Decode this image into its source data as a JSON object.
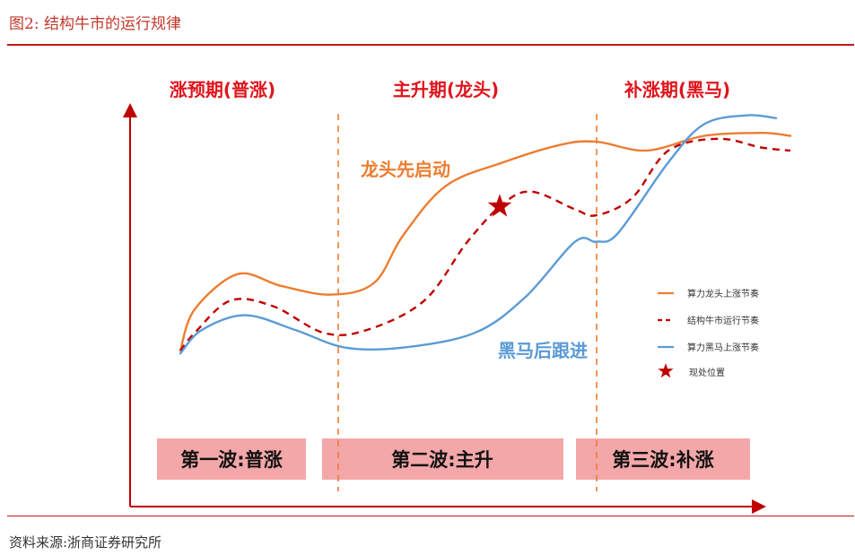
{
  "header": {
    "figure_title": "图2:  结构牛市的运行规律"
  },
  "footer": {
    "source": "资料来源:浙商证券研究所"
  },
  "chart_data": {
    "type": "line",
    "title": "结构牛市的运行规律",
    "xlabel": "",
    "ylabel": "",
    "x_range": [
      0,
      100
    ],
    "y_range": [
      0,
      100
    ],
    "phases": [
      {
        "name": "涨预期(普涨)",
        "wave": "第一波:普涨",
        "x_start": 5,
        "x_end": 29
      },
      {
        "name": "主升期(龙头)",
        "wave": "第二波:主升",
        "x_start": 29,
        "x_end": 65
      },
      {
        "name": "补涨期(黑马)",
        "wave": "第三波:补涨",
        "x_start": 65,
        "x_end": 92
      }
    ],
    "dividers": [
      29,
      65
    ],
    "series": [
      {
        "name": "算力龙头上涨节奏",
        "color": "#ed7d31",
        "style": "solid",
        "points": [
          [
            7,
            18
          ],
          [
            9,
            32
          ],
          [
            15,
            44
          ],
          [
            21,
            40
          ],
          [
            28,
            37
          ],
          [
            34,
            41
          ],
          [
            38,
            57
          ],
          [
            44,
            74
          ],
          [
            52,
            82
          ],
          [
            60,
            88
          ],
          [
            65,
            89
          ],
          [
            72,
            86
          ],
          [
            80,
            91
          ],
          [
            88,
            92
          ],
          [
            92,
            91
          ]
        ]
      },
      {
        "name": "结构牛市运行节奏",
        "color": "#c00000",
        "style": "dashed",
        "points": [
          [
            7,
            18
          ],
          [
            9,
            24
          ],
          [
            14,
            35
          ],
          [
            20,
            33
          ],
          [
            27,
            24
          ],
          [
            33,
            25
          ],
          [
            41,
            35
          ],
          [
            47,
            55
          ],
          [
            52,
            68
          ],
          [
            56,
            72
          ],
          [
            62,
            66
          ],
          [
            65,
            64
          ],
          [
            70,
            70
          ],
          [
            75,
            86
          ],
          [
            82,
            90
          ],
          [
            88,
            87
          ],
          [
            92,
            86
          ]
        ]
      },
      {
        "name": "算力黑马上涨节奏",
        "color": "#5b9bd5",
        "style": "solid",
        "points": [
          [
            7,
            17
          ],
          [
            10,
            25
          ],
          [
            16,
            30
          ],
          [
            23,
            25
          ],
          [
            30,
            19
          ],
          [
            38,
            19
          ],
          [
            48,
            24
          ],
          [
            55,
            36
          ],
          [
            62,
            55
          ],
          [
            65,
            55
          ],
          [
            68,
            58
          ],
          [
            75,
            82
          ],
          [
            80,
            95
          ],
          [
            86,
            98
          ],
          [
            90,
            97
          ]
        ]
      }
    ],
    "annotations": [
      {
        "text": "龙头先启动",
        "color": "#ed7d31"
      },
      {
        "text": "黑马后跟进",
        "color": "#5b9bd5"
      }
    ],
    "marker": {
      "label": "现处位置",
      "color": "#c00000",
      "x": 51.5,
      "y": 67
    },
    "legend": {
      "position": "right",
      "items": [
        {
          "label": "算力龙头上涨节奏",
          "color": "#ed7d31",
          "style": "solid"
        },
        {
          "label": "结构牛市运行节奏",
          "color": "#c00000",
          "style": "dashed"
        },
        {
          "label": "算力黑马上涨节奏",
          "color": "#5b9bd5",
          "style": "solid"
        },
        {
          "label": "现处位置",
          "color": "#c00000",
          "style": "star"
        }
      ]
    }
  }
}
